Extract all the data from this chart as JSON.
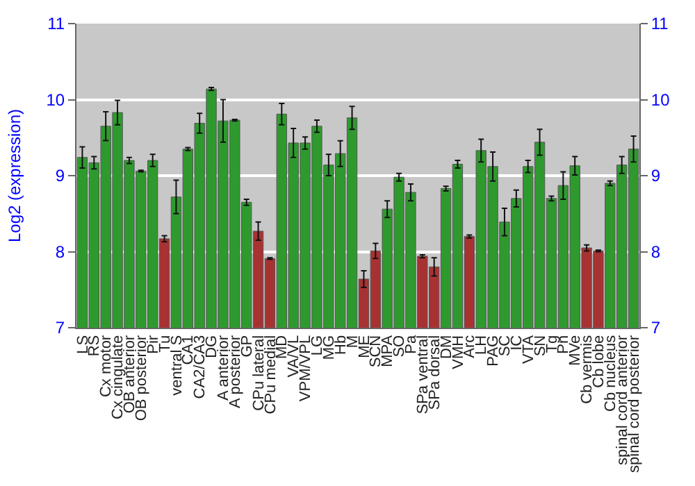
{
  "chart_data": {
    "type": "bar",
    "ylabel": "Log2 (expression)",
    "categories": [
      "LS",
      "RS",
      "Cx motor",
      "Cx cingulate",
      "OB anterior",
      "OB posterior",
      "Pir",
      "Tu",
      "ventral S",
      "CA1",
      "CA2/CA3",
      "DG",
      "A anterior",
      "A posterior",
      "GP",
      "CPu lateral",
      "CPu medial",
      "MD",
      "VA/VL",
      "VPM/VPL",
      "LG",
      "MG",
      "Hb",
      "M",
      "ME",
      "SCN",
      "MPA",
      "SO",
      "Pa",
      "SPa ventral",
      "SPa dorsal",
      "DM",
      "VMH",
      "Arc",
      "LH",
      "PAG",
      "SC",
      "IC",
      "VTA",
      "SN",
      "Tg",
      "Pn",
      "MVe",
      "Cb vermis",
      "Cb lobe",
      "Cb nucleus",
      "spinal cord anterior",
      "spinal cord posterior"
    ],
    "values": [
      9.24,
      9.17,
      9.65,
      9.83,
      9.2,
      9.06,
      9.2,
      8.17,
      8.72,
      9.35,
      9.69,
      10.14,
      9.72,
      9.73,
      8.65,
      8.27,
      7.91,
      9.81,
      9.43,
      9.43,
      9.65,
      9.14,
      9.29,
      9.76,
      7.64,
      8.01,
      8.56,
      8.98,
      8.78,
      7.94,
      7.8,
      8.83,
      9.15,
      8.2,
      9.33,
      9.12,
      8.39,
      8.7,
      9.12,
      9.44,
      8.7,
      8.87,
      9.13,
      8.05,
      8.01,
      8.9,
      9.14,
      9.35
    ],
    "errors": [
      0.14,
      0.08,
      0.19,
      0.16,
      0.04,
      0.01,
      0.08,
      0.04,
      0.22,
      0.02,
      0.13,
      0.02,
      0.28,
      0.01,
      0.04,
      0.12,
      0.01,
      0.14,
      0.19,
      0.08,
      0.08,
      0.14,
      0.17,
      0.15,
      0.11,
      0.1,
      0.11,
      0.05,
      0.11,
      0.02,
      0.12,
      0.03,
      0.05,
      0.02,
      0.15,
      0.19,
      0.18,
      0.11,
      0.08,
      0.17,
      0.03,
      0.18,
      0.12,
      0.04,
      0.01,
      0.03,
      0.11,
      0.17
    ],
    "colors": [
      "#2e9a2e",
      "#2e9a2e",
      "#2e9a2e",
      "#2e9a2e",
      "#2e9a2e",
      "#2e9a2e",
      "#2e9a2e",
      "#a83232",
      "#2e9a2e",
      "#2e9a2e",
      "#2e9a2e",
      "#2e9a2e",
      "#2e9a2e",
      "#2e9a2e",
      "#2e9a2e",
      "#a83232",
      "#a83232",
      "#2e9a2e",
      "#2e9a2e",
      "#2e9a2e",
      "#2e9a2e",
      "#2e9a2e",
      "#2e9a2e",
      "#2e9a2e",
      "#a83232",
      "#a83232",
      "#2e9a2e",
      "#2e9a2e",
      "#2e9a2e",
      "#a83232",
      "#a83232",
      "#2e9a2e",
      "#2e9a2e",
      "#a83232",
      "#2e9a2e",
      "#2e9a2e",
      "#2e9a2e",
      "#2e9a2e",
      "#2e9a2e",
      "#2e9a2e",
      "#2e9a2e",
      "#2e9a2e",
      "#2e9a2e",
      "#a83232",
      "#a83232",
      "#2e9a2e",
      "#2e9a2e",
      "#2e9a2e"
    ],
    "ylim": [
      7,
      11
    ],
    "yticks": [
      7,
      8,
      9,
      10,
      11
    ],
    "y2lim": [
      7,
      11
    ],
    "y2ticks": [
      7,
      8,
      9,
      10,
      11
    ],
    "grid": "y"
  }
}
